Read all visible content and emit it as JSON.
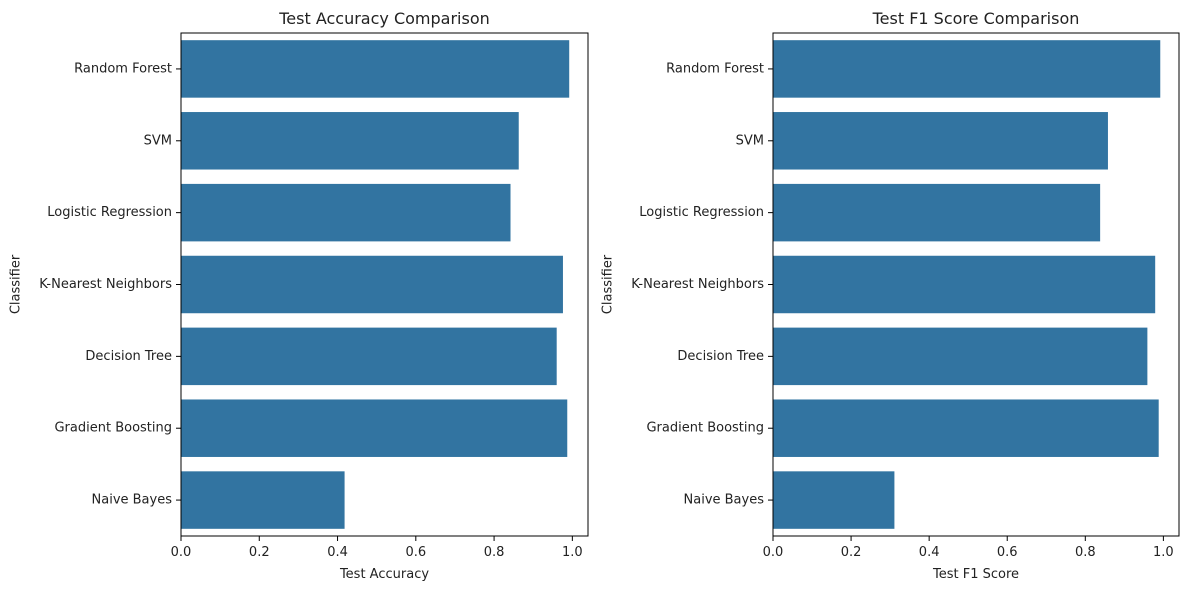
{
  "chart_data": [
    {
      "type": "bar",
      "orientation": "horizontal",
      "title": "Test Accuracy Comparison",
      "xlabel": "Test Accuracy",
      "ylabel": "Classifier",
      "categories": [
        "Random Forest",
        "SVM",
        "Logistic Regression",
        "K-Nearest Neighbors",
        "Decision Tree",
        "Gradient Boosting",
        "Naive Bayes"
      ],
      "values": [
        0.992,
        0.863,
        0.842,
        0.976,
        0.96,
        0.987,
        0.418
      ],
      "xlim": [
        0,
        1.04
      ],
      "xticks": [
        0.0,
        0.2,
        0.4,
        0.6,
        0.8,
        1.0
      ],
      "xtick_labels": [
        "0.0",
        "0.2",
        "0.4",
        "0.6",
        "0.8",
        "1.0"
      ],
      "color": "#3274a1",
      "grid": false
    },
    {
      "type": "bar",
      "orientation": "horizontal",
      "title": "Test F1 Score Comparison",
      "xlabel": "Test F1 Score",
      "ylabel": "Classifier",
      "categories": [
        "Random Forest",
        "SVM",
        "Logistic Regression",
        "K-Nearest Neighbors",
        "Decision Tree",
        "Gradient Boosting",
        "Naive Bayes"
      ],
      "values": [
        0.992,
        0.858,
        0.838,
        0.979,
        0.959,
        0.988,
        0.311
      ],
      "xlim": [
        0,
        1.04
      ],
      "xticks": [
        0.0,
        0.2,
        0.4,
        0.6,
        0.8,
        1.0
      ],
      "xtick_labels": [
        "0.0",
        "0.2",
        "0.4",
        "0.6",
        "0.8",
        "1.0"
      ],
      "color": "#3274a1",
      "grid": false
    }
  ]
}
